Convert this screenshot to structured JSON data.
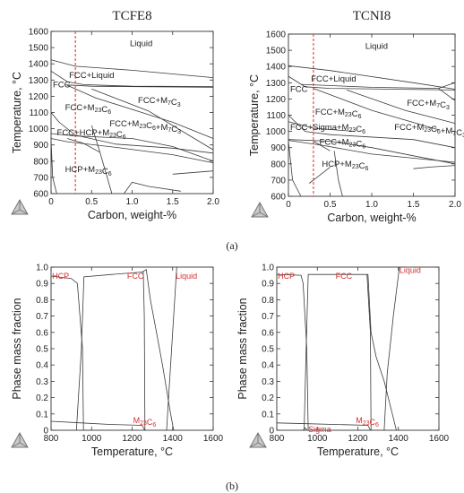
{
  "figure": {
    "caption_a": "(a)",
    "caption_b": "(b)"
  },
  "chart_data": [
    {
      "type": "line",
      "title": "TCFE8",
      "xlabel": "Carbon, weight-%",
      "ylabel": "Temperature, °C",
      "xlim": [
        0,
        2.0
      ],
      "ylim": [
        600,
        1600
      ],
      "xticks": [
        "0",
        "0.5",
        "1.0",
        "1.5",
        "2.0"
      ],
      "yticks": [
        "600",
        "700",
        "800",
        "900",
        "1000",
        "1100",
        "1200",
        "1300",
        "1400",
        "1500",
        "1600"
      ],
      "marker_x": 0.3,
      "regions": [
        {
          "label": "Liquid",
          "x": 0.95,
          "y": 1525
        },
        {
          "label": "FCC+Liquid",
          "x": 0.2,
          "y": 1330
        },
        {
          "label": "FCC",
          "x": 0.0,
          "y": 1270
        },
        {
          "label": "FCC+M23C6",
          "x": 0.15,
          "y": 1130
        },
        {
          "label": "FCC+M7C3",
          "x": 1.05,
          "y": 1175
        },
        {
          "label": "FCC+M23C6+M7C3",
          "x": 0.7,
          "y": 1030
        },
        {
          "label": "FCC+HCP+M23C6",
          "x": 0.05,
          "y": 975
        },
        {
          "label": "HCP+M23C6",
          "x": 0.15,
          "y": 750
        }
      ],
      "series": [
        {
          "values": [
            [
              0,
              1425
            ],
            [
              0.3,
              1385
            ],
            [
              1.0,
              1360
            ],
            [
              2.0,
              1315
            ]
          ]
        },
        {
          "values": [
            [
              0,
              1355
            ],
            [
              0.2,
              1290
            ],
            [
              0.4,
              1272
            ],
            [
              1.0,
              1262
            ],
            [
              2.0,
              1260
            ]
          ]
        },
        {
          "values": [
            [
              0.18,
              1270
            ],
            [
              0.5,
              1262
            ],
            [
              2.0,
              1255
            ]
          ]
        },
        {
          "values": [
            [
              0.2,
              1268
            ],
            [
              0.55,
              1190
            ],
            [
              1.5,
              1040
            ],
            [
              2.0,
              940
            ]
          ]
        },
        {
          "values": [
            [
              0.5,
              1245
            ],
            [
              1.2,
              1110
            ],
            [
              2.0,
              870
            ]
          ]
        },
        {
          "values": [
            [
              0,
              1100
            ],
            [
              0.1,
              1040
            ],
            [
              0.3,
              960
            ],
            [
              0.8,
              905
            ],
            [
              1.5,
              880
            ],
            [
              2.0,
              850
            ]
          ]
        },
        {
          "values": [
            [
              0,
              970
            ],
            [
              0.3,
              955
            ],
            [
              1.0,
              940
            ],
            [
              1.5,
              890
            ],
            [
              2.0,
              800
            ]
          ]
        },
        {
          "values": [
            [
              0,
              940
            ],
            [
              0.2,
              920
            ],
            [
              0.8,
              885
            ],
            [
              1.5,
              840
            ],
            [
              2.0,
              790
            ]
          ]
        },
        {
          "values": [
            [
              0.2,
              940
            ],
            [
              0.4,
              910
            ],
            [
              0.6,
              855
            ]
          ]
        },
        {
          "values": [
            [
              0.5,
              1020
            ],
            [
              0.6,
              860
            ],
            [
              0.75,
              600
            ]
          ]
        },
        {
          "values": [
            [
              0.9,
              600
            ],
            [
              1.0,
              670
            ],
            [
              1.2,
              645
            ],
            [
              1.6,
              615
            ]
          ]
        },
        {
          "values": [
            [
              1.5,
              720
            ],
            [
              2.0,
              740
            ]
          ]
        },
        {
          "values": [
            [
              0.0,
              930
            ],
            [
              0.02,
              700
            ],
            [
              0.07,
              600
            ]
          ]
        }
      ]
    },
    {
      "type": "line",
      "title": "TCNI8",
      "xlabel": "Carbon, weight-%",
      "ylabel": "Temperature, °C",
      "xlim": [
        0,
        2.0
      ],
      "ylim": [
        600,
        1600
      ],
      "xticks": [
        "0",
        "0.5",
        "1.0",
        "1.5",
        "2.0"
      ],
      "yticks": [
        "600",
        "700",
        "800",
        "900",
        "1000",
        "1100",
        "1200",
        "1300",
        "1400",
        "1500",
        "1600"
      ],
      "marker_x": 0.3,
      "regions": [
        {
          "label": "Liquid",
          "x": 0.9,
          "y": 1525
        },
        {
          "label": "FCC+Liquid",
          "x": 0.25,
          "y": 1325
        },
        {
          "label": "FCC",
          "x": 0.0,
          "y": 1260
        },
        {
          "label": "FCC+M23C6",
          "x": 0.3,
          "y": 1120
        },
        {
          "label": "FCC+M7C3",
          "x": 1.4,
          "y": 1175
        },
        {
          "label": "FCC+Sigma+M23C6",
          "x": 0.0,
          "y": 1025
        },
        {
          "label": "FCC+M23C6",
          "x": 0.35,
          "y": 935
        },
        {
          "label": "FCC+M23C6+M7C3",
          "x": 1.25,
          "y": 1025
        },
        {
          "label": "HCP+M23C6",
          "x": 0.38,
          "y": 800
        }
      ],
      "series": [
        {
          "values": [
            [
              0,
              1405
            ],
            [
              0.5,
              1375
            ],
            [
              1.5,
              1300
            ],
            [
              2.0,
              1260
            ]
          ]
        },
        {
          "values": [
            [
              0,
              1340
            ],
            [
              0.2,
              1275
            ],
            [
              0.5,
              1265
            ],
            [
              2.0,
              1255
            ]
          ]
        },
        {
          "values": [
            [
              0.15,
              1290
            ],
            [
              1.0,
              1272
            ],
            [
              1.8,
              1265
            ],
            [
              2.0,
              1300
            ]
          ]
        },
        {
          "values": [
            [
              0.3,
              1265
            ],
            [
              1.0,
              1130
            ],
            [
              1.8,
              1010
            ]
          ]
        },
        {
          "values": [
            [
              0.7,
              1255
            ],
            [
              1.4,
              1130
            ],
            [
              2.0,
              1050
            ]
          ]
        },
        {
          "values": [
            [
              1.8,
              1265
            ],
            [
              2.0,
              1190
            ]
          ]
        },
        {
          "values": [
            [
              0,
              1100
            ],
            [
              0.2,
              1000
            ],
            [
              0.5,
              980
            ],
            [
              1.5,
              950
            ],
            [
              2.0,
              900
            ]
          ]
        },
        {
          "values": [
            [
              0,
              1060
            ],
            [
              0.3,
              1020
            ],
            [
              0.8,
              1000
            ]
          ]
        },
        {
          "values": [
            [
              0,
              950
            ],
            [
              0.5,
              940
            ],
            [
              1.0,
              900
            ],
            [
              1.5,
              850
            ],
            [
              2.0,
              800
            ]
          ]
        },
        {
          "values": [
            [
              0,
              945
            ],
            [
              0.4,
              915
            ],
            [
              1.0,
              860
            ],
            [
              2.0,
              810
            ]
          ]
        },
        {
          "values": [
            [
              0.3,
              940
            ],
            [
              0.5,
              880
            ]
          ]
        },
        {
          "values": [
            [
              0.0,
              940
            ],
            [
              0.05,
              700
            ],
            [
              0.15,
              600
            ]
          ]
        },
        {
          "values": [
            [
              0.25,
              680
            ],
            [
              0.35,
              720
            ],
            [
              0.5,
              780
            ]
          ]
        },
        {
          "values": [
            [
              0.55,
              880
            ],
            [
              0.6,
              700
            ],
            [
              0.65,
              600
            ]
          ]
        },
        {
          "values": [
            [
              1.5,
              770
            ],
            [
              1.7,
              780
            ],
            [
              2.0,
              790
            ]
          ]
        }
      ]
    },
    {
      "type": "line",
      "title": "",
      "xlabel": "Temperature, °C",
      "ylabel": "Phase mass fraction",
      "xlim": [
        800,
        1600
      ],
      "ylim": [
        0,
        1.0
      ],
      "xticks": [
        "800",
        "1000",
        "1200",
        "1400",
        "1600"
      ],
      "yticks": [
        "0",
        "0.1",
        "0.2",
        "0.3",
        "0.4",
        "0.5",
        "0.6",
        "0.7",
        "0.8",
        "0.9",
        "1.0"
      ],
      "phase_labels": [
        {
          "label": "HCP",
          "x": 805,
          "y": 0.945
        },
        {
          "label": "FCC",
          "x": 1175,
          "y": 0.945
        },
        {
          "label": "Liquid",
          "x": 1415,
          "y": 0.945
        },
        {
          "label": "M23C6",
          "x": 1205,
          "y": 0.06
        }
      ],
      "series": [
        {
          "name": "HCP",
          "values": [
            [
              800,
              0.945
            ],
            [
              900,
              0.93
            ],
            [
              930,
              0.9
            ],
            [
              955,
              0.5
            ],
            [
              960,
              0
            ]
          ]
        },
        {
          "name": "FCC",
          "values": [
            [
              925,
              0
            ],
            [
              950,
              0.5
            ],
            [
              962,
              0.94
            ],
            [
              1100,
              0.955
            ],
            [
              1250,
              0.97
            ],
            [
              1270,
              0.985
            ],
            [
              1290,
              0.8
            ],
            [
              1320,
              0.6
            ],
            [
              1350,
              0.4
            ],
            [
              1390,
              0.1
            ],
            [
              1405,
              0
            ]
          ]
        },
        {
          "name": "Liquid",
          "values": [
            [
              1370,
              0
            ],
            [
              1380,
              0.2
            ],
            [
              1395,
              0.5
            ],
            [
              1420,
              1.0
            ]
          ]
        },
        {
          "name": "M23C6",
          "values": [
            [
              800,
              0.055
            ],
            [
              950,
              0.045
            ],
            [
              1100,
              0.035
            ],
            [
              1250,
              0.03
            ],
            [
              1262,
              0
            ]
          ]
        },
        {
          "values": [
            [
              1255,
              0.975
            ],
            [
              1260,
              0.7
            ],
            [
              1263,
              0
            ]
          ]
        }
      ]
    },
    {
      "type": "line",
      "title": "",
      "xlabel": "Temperature, °C",
      "ylabel": "Phase mass fraction",
      "xlim": [
        800,
        1600
      ],
      "ylim": [
        0,
        1.0
      ],
      "xticks": [
        "800",
        "1000",
        "1200",
        "1400",
        "1600"
      ],
      "yticks": [
        "0",
        "0.1",
        "0.2",
        "0.3",
        "0.4",
        "0.5",
        "0.6",
        "0.7",
        "0.8",
        "0.9",
        "1.0"
      ],
      "phase_labels": [
        {
          "label": "HCP",
          "x": 805,
          "y": 0.945
        },
        {
          "label": "FCC",
          "x": 1090,
          "y": 0.945
        },
        {
          "label": "Liquid",
          "x": 1405,
          "y": 0.98
        },
        {
          "label": "M23C6",
          "x": 1190,
          "y": 0.06
        },
        {
          "label": "Sigma",
          "x": 955,
          "y": 0.005
        }
      ],
      "series": [
        {
          "name": "HCP",
          "values": [
            [
              800,
              0.955
            ],
            [
              920,
              0.95
            ],
            [
              930,
              0.9
            ],
            [
              948,
              0.5
            ],
            [
              955,
              0
            ]
          ]
        },
        {
          "name": "FCC",
          "values": [
            [
              935,
              0
            ],
            [
              945,
              0.5
            ],
            [
              955,
              0.955
            ],
            [
              1250,
              0.955
            ],
            [
              1265,
              0.6
            ],
            [
              1290,
              0.45
            ],
            [
              1330,
              0.3
            ],
            [
              1370,
              0.1
            ],
            [
              1390,
              0
            ]
          ]
        },
        {
          "name": "Liquid",
          "values": [
            [
              1330,
              0
            ],
            [
              1345,
              0.35
            ],
            [
              1375,
              0.7
            ],
            [
              1405,
              1.0
            ]
          ]
        },
        {
          "name": "M23C6",
          "values": [
            [
              800,
              0.045
            ],
            [
              950,
              0.04
            ],
            [
              1100,
              0.035
            ],
            [
              1250,
              0.03
            ],
            [
              1262,
              0
            ]
          ]
        },
        {
          "name": "Sigma",
          "values": [
            [
              930,
              0.0
            ],
            [
              940,
              0.015
            ],
            [
              950,
              0.0
            ]
          ]
        },
        {
          "values": [
            [
              1245,
              0.955
            ],
            [
              1262,
              0.6
            ],
            [
              1265,
              0
            ]
          ]
        }
      ]
    }
  ]
}
